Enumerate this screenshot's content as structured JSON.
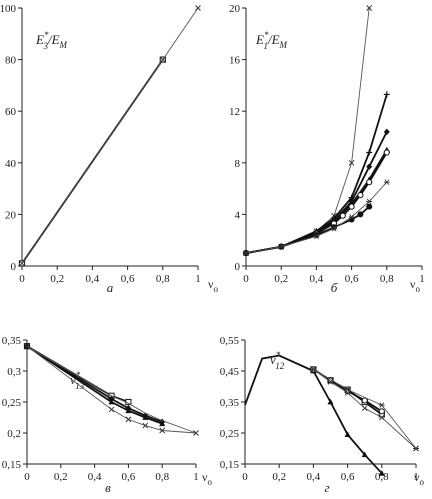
{
  "chart_data": [
    {
      "type": "line",
      "panel_label": "а",
      "ylabel": "E*3/EM",
      "xlabel": "νo",
      "xlim": [
        0,
        1
      ],
      "ylim": [
        0,
        100
      ],
      "xticks": [
        "0",
        "0,2",
        "0,4",
        "0,6",
        "0,8",
        "1"
      ],
      "yticks": [
        "0",
        "20",
        "40",
        "60",
        "80",
        "100"
      ],
      "series": [
        {
          "style": "thick-square",
          "x": [
            0,
            0.8
          ],
          "y": [
            1,
            80
          ]
        },
        {
          "style": "thin-cross",
          "x": [
            0,
            0.8,
            1.0
          ],
          "y": [
            1,
            80,
            100
          ]
        }
      ]
    },
    {
      "type": "line",
      "panel_label": "б",
      "ylabel": "E*1/EM",
      "xlabel": "νo",
      "xlim": [
        0,
        1
      ],
      "ylim": [
        0,
        20
      ],
      "xticks": [
        "0",
        "0,2",
        "0,4",
        "0,6",
        "0,8",
        "1"
      ],
      "yticks": [
        "0",
        "4",
        "8",
        "12",
        "16",
        "20"
      ],
      "series": [
        {
          "style": "thin-cross",
          "x": [
            0,
            0.2,
            0.4,
            0.5,
            0.6,
            0.7
          ],
          "y": [
            1,
            1.5,
            2.7,
            3.9,
            8.0,
            20.0
          ]
        },
        {
          "style": "thick-plus",
          "x": [
            0,
            0.2,
            0.4,
            0.5,
            0.6,
            0.7,
            0.8
          ],
          "y": [
            1,
            1.5,
            2.7,
            3.7,
            5.3,
            8.8,
            13.3
          ]
        },
        {
          "style": "thick-diamond",
          "x": [
            0,
            0.2,
            0.4,
            0.5,
            0.6,
            0.7,
            0.8
          ],
          "y": [
            1,
            1.5,
            2.6,
            3.5,
            5.0,
            7.7,
            10.4
          ]
        },
        {
          "style": "thick-triangle",
          "x": [
            0,
            0.2,
            0.4,
            0.5,
            0.6,
            0.7,
            0.8
          ],
          "y": [
            1,
            1.5,
            2.6,
            3.4,
            4.8,
            6.7,
            9.0
          ]
        },
        {
          "style": "thick-circle",
          "x": [
            0,
            0.2,
            0.4,
            0.5,
            0.55,
            0.6,
            0.65,
            0.7,
            0.8
          ],
          "y": [
            1,
            1.5,
            2.5,
            3.3,
            3.9,
            4.6,
            5.5,
            6.5,
            8.8
          ]
        },
        {
          "style": "thick-dot",
          "x": [
            0,
            0.2,
            0.4,
            0.5,
            0.6,
            0.65,
            0.7
          ],
          "y": [
            1,
            1.5,
            2.4,
            3.0,
            3.6,
            4.0,
            4.6
          ]
        },
        {
          "style": "thin-asterisk",
          "x": [
            0,
            0.2,
            0.4,
            0.5,
            0.6,
            0.7,
            0.8
          ],
          "y": [
            1,
            1.5,
            2.3,
            2.9,
            3.8,
            5.0,
            6.5
          ]
        }
      ]
    },
    {
      "type": "line",
      "panel_label": "в",
      "ylabel": "ν*13",
      "xlabel": "νo",
      "xlim": [
        0,
        1
      ],
      "ylim": [
        0.15,
        0.35
      ],
      "xticks": [
        "0",
        "0,2",
        "0,4",
        "0,6",
        "0,8",
        "1"
      ],
      "yticks": [
        "0,15",
        "0,2",
        "0,25",
        "0,3",
        "0,35"
      ],
      "series": [
        {
          "style": "thick-square",
          "x": [
            0,
            0.5,
            0.6
          ],
          "y": [
            0.34,
            0.26,
            0.25
          ]
        },
        {
          "style": "thick-diamond",
          "x": [
            0,
            0.5,
            0.6,
            0.7,
            0.8
          ],
          "y": [
            0.34,
            0.255,
            0.24,
            0.228,
            0.218
          ]
        },
        {
          "style": "thick-triangle",
          "x": [
            0,
            0.5,
            0.6,
            0.7,
            0.8
          ],
          "y": [
            0.34,
            0.25,
            0.236,
            0.225,
            0.215
          ]
        },
        {
          "style": "thin-cross",
          "x": [
            0,
            0.5,
            0.6,
            0.7,
            0.8,
            1.0
          ],
          "y": [
            0.34,
            0.238,
            0.222,
            0.212,
            0.204,
            0.2
          ]
        },
        {
          "style": "thin-plain",
          "x": [
            0,
            0.5,
            0.6,
            0.7,
            0.8,
            1.0
          ],
          "y": [
            0.34,
            0.26,
            0.248,
            0.232,
            0.22,
            0.2
          ]
        }
      ]
    },
    {
      "type": "line",
      "panel_label": "г",
      "ylabel": "ν*12",
      "xlabel": "νo",
      "xlim": [
        0,
        1
      ],
      "ylim": [
        0.15,
        0.55
      ],
      "xticks": [
        "0",
        "0,2",
        "0,4",
        "0,6",
        "0,8",
        "1"
      ],
      "yticks": [
        "0,15",
        "0,25",
        "0,35",
        "0,45",
        "0,55"
      ],
      "series": [
        {
          "style": "thick-plain",
          "x": [
            0,
            0.1,
            0.2,
            0.4
          ],
          "y": [
            0.34,
            0.49,
            0.5,
            0.45
          ]
        },
        {
          "style": "thick-triangle",
          "x": [
            0.4,
            0.5,
            0.6,
            0.7,
            0.8
          ],
          "y": [
            0.45,
            0.35,
            0.245,
            0.18,
            0.12
          ]
        },
        {
          "style": "thick-square",
          "x": [
            0.4,
            0.5,
            0.6,
            0.7,
            0.8
          ],
          "y": [
            0.455,
            0.42,
            0.39,
            0.35,
            0.31
          ]
        },
        {
          "style": "thick-circle",
          "x": [
            0.4,
            0.5,
            0.6,
            0.7,
            0.8
          ],
          "y": [
            0.455,
            0.42,
            0.385,
            0.355,
            0.32
          ]
        },
        {
          "style": "thin-cross",
          "x": [
            0.4,
            0.5,
            0.6,
            0.7,
            0.8,
            1.0
          ],
          "y": [
            0.455,
            0.415,
            0.38,
            0.33,
            0.3,
            0.2
          ]
        },
        {
          "style": "thin-asterisk",
          "x": [
            0.4,
            0.6,
            0.8,
            1.0
          ],
          "y": [
            0.455,
            0.39,
            0.34,
            0.2
          ]
        }
      ]
    }
  ]
}
